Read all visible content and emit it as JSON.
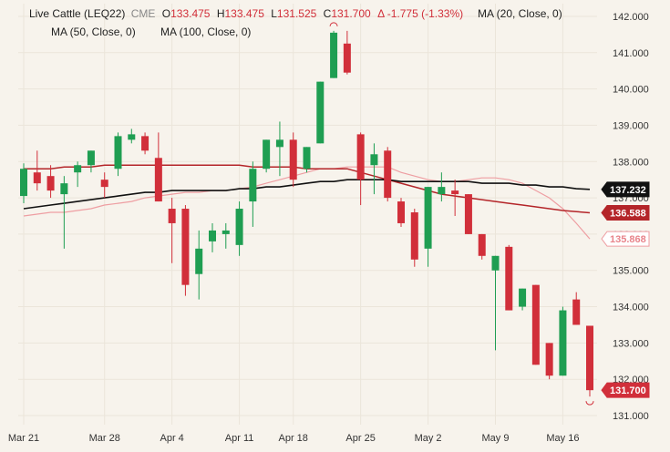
{
  "legend": {
    "symbol": "Live Cattle (LEQ22)",
    "exchange": "CME",
    "o_label": "O",
    "o_value": "133.475",
    "h_label": "H",
    "h_value": "133.475",
    "l_label": "L",
    "l_value": "131.525",
    "c_label": "C",
    "c_value": "131.700",
    "change": "Δ -1.775 (-1.33%)",
    "ma20": "MA (20, Close, 0)",
    "ma50": "MA (50, Close, 0)",
    "ma100": "MA (100, Close, 0)"
  },
  "colors": {
    "background": "#f7f3ec",
    "up": "#1f9e52",
    "down": "#d12f3a",
    "ma20": "#ee9ea2",
    "ma50": "#b42529",
    "ma100": "#111111",
    "grid": "#ebe5da"
  },
  "chart_data": {
    "type": "candlestick",
    "y_axis_side": "right",
    "ylim": [
      130.75,
      142.35
    ],
    "y_ticks": [
      "131.000",
      "132.000",
      "133.000",
      "134.000",
      "135.000",
      "136.000",
      "137.000",
      "138.000",
      "139.000",
      "140.000",
      "141.000",
      "142.000"
    ],
    "x_ticks": [
      {
        "label": "Mar 21",
        "index": 0
      },
      {
        "label": "Mar 28",
        "index": 6
      },
      {
        "label": "Apr 4",
        "index": 11
      },
      {
        "label": "Apr 11",
        "index": 16
      },
      {
        "label": "Apr 18",
        "index": 20
      },
      {
        "label": "Apr 25",
        "index": 25
      },
      {
        "label": "May 2",
        "index": 30
      },
      {
        "label": "May 9",
        "index": 35
      },
      {
        "label": "May 16",
        "index": 40
      }
    ],
    "candles": [
      {
        "o": 137.05,
        "h": 137.95,
        "l": 136.85,
        "c": 137.8
      },
      {
        "o": 137.7,
        "h": 138.3,
        "l": 137.2,
        "c": 137.4
      },
      {
        "o": 137.6,
        "h": 137.9,
        "l": 137.0,
        "c": 137.2
      },
      {
        "o": 137.1,
        "h": 137.6,
        "l": 135.6,
        "c": 137.4
      },
      {
        "o": 137.7,
        "h": 138.0,
        "l": 137.3,
        "c": 137.9
      },
      {
        "o": 137.9,
        "h": 138.3,
        "l": 137.7,
        "c": 138.3
      },
      {
        "o": 137.5,
        "h": 137.7,
        "l": 137.0,
        "c": 137.3
      },
      {
        "o": 137.8,
        "h": 138.8,
        "l": 137.6,
        "c": 138.7
      },
      {
        "o": 138.6,
        "h": 138.9,
        "l": 138.5,
        "c": 138.75
      },
      {
        "o": 138.7,
        "h": 138.8,
        "l": 138.2,
        "c": 138.3
      },
      {
        "o": 138.1,
        "h": 138.8,
        "l": 136.9,
        "c": 136.9
      },
      {
        "o": 136.7,
        "h": 137.0,
        "l": 135.2,
        "c": 136.3
      },
      {
        "o": 136.7,
        "h": 136.8,
        "l": 134.3,
        "c": 134.6
      },
      {
        "o": 134.9,
        "h": 136.1,
        "l": 134.2,
        "c": 135.6
      },
      {
        "o": 135.8,
        "h": 136.3,
        "l": 135.5,
        "c": 136.1
      },
      {
        "o": 136.0,
        "h": 136.3,
        "l": 135.6,
        "c": 136.1
      },
      {
        "o": 135.7,
        "h": 136.9,
        "l": 135.4,
        "c": 136.7
      },
      {
        "o": 136.9,
        "h": 138.0,
        "l": 136.2,
        "c": 137.8
      },
      {
        "o": 137.8,
        "h": 138.6,
        "l": 137.7,
        "c": 138.6
      },
      {
        "o": 138.4,
        "h": 139.1,
        "l": 137.6,
        "c": 138.6
      },
      {
        "o": 138.6,
        "h": 138.8,
        "l": 137.3,
        "c": 137.5
      },
      {
        "o": 137.8,
        "h": 138.4,
        "l": 137.7,
        "c": 138.4
      },
      {
        "o": 138.5,
        "h": 140.2,
        "l": 138.5,
        "c": 140.2
      },
      {
        "o": 140.3,
        "h": 141.6,
        "l": 140.3,
        "c": 141.55
      },
      {
        "o": 141.25,
        "h": 141.6,
        "l": 140.4,
        "c": 140.45
      },
      {
        "o": 138.75,
        "h": 138.8,
        "l": 136.8,
        "c": 137.5
      },
      {
        "o": 137.9,
        "h": 138.5,
        "l": 137.1,
        "c": 138.2
      },
      {
        "o": 138.3,
        "h": 138.4,
        "l": 136.9,
        "c": 137.0
      },
      {
        "o": 136.9,
        "h": 137.0,
        "l": 136.2,
        "c": 136.3
      },
      {
        "o": 136.6,
        "h": 136.7,
        "l": 135.1,
        "c": 135.3
      },
      {
        "o": 135.6,
        "h": 137.3,
        "l": 135.1,
        "c": 137.3
      },
      {
        "o": 137.1,
        "h": 137.7,
        "l": 136.9,
        "c": 137.3
      },
      {
        "o": 137.2,
        "h": 137.5,
        "l": 136.5,
        "c": 137.1
      },
      {
        "o": 137.1,
        "h": 137.1,
        "l": 136.0,
        "c": 136.0
      },
      {
        "o": 136.0,
        "h": 136.0,
        "l": 135.3,
        "c": 135.4
      },
      {
        "o": 135.0,
        "h": 135.4,
        "l": 132.8,
        "c": 135.4
      },
      {
        "o": 135.65,
        "h": 135.7,
        "l": 133.9,
        "c": 133.9
      },
      {
        "o": 134.0,
        "h": 134.5,
        "l": 133.9,
        "c": 134.5
      },
      {
        "o": 134.6,
        "h": 134.6,
        "l": 132.4,
        "c": 132.4
      },
      {
        "o": 133.0,
        "h": 133.0,
        "l": 132.0,
        "c": 132.1
      },
      {
        "o": 132.1,
        "h": 134.0,
        "l": 132.1,
        "c": 133.9
      },
      {
        "o": 134.2,
        "h": 134.4,
        "l": 133.5,
        "c": 133.5
      },
      {
        "o": 133.475,
        "h": 133.475,
        "l": 131.525,
        "c": 131.7
      }
    ],
    "series": [
      {
        "values": [
          136.5,
          136.55,
          136.6,
          136.6,
          136.65,
          136.7,
          136.8,
          136.85,
          136.9,
          137.0,
          137.05,
          137.1,
          137.15,
          137.15,
          137.2,
          137.2,
          137.25,
          137.3,
          137.4,
          137.5,
          137.6,
          137.7,
          137.8,
          137.8,
          137.85,
          137.85,
          137.85,
          137.85,
          137.7,
          137.6,
          137.5,
          137.45,
          137.45,
          137.5,
          137.55,
          137.55,
          137.5,
          137.4,
          137.2,
          137.0,
          136.7,
          136.3,
          135.87
        ]
      },
      {
        "values": [
          137.8,
          137.8,
          137.8,
          137.85,
          137.85,
          137.85,
          137.9,
          137.9,
          137.9,
          137.9,
          137.9,
          137.9,
          137.9,
          137.9,
          137.9,
          137.9,
          137.9,
          137.85,
          137.85,
          137.85,
          137.85,
          137.8,
          137.8,
          137.8,
          137.8,
          137.7,
          137.6,
          137.5,
          137.4,
          137.3,
          137.2,
          137.1,
          137.05,
          137.0,
          136.95,
          136.9,
          136.85,
          136.8,
          136.75,
          136.7,
          136.65,
          136.62,
          136.588
        ]
      },
      {
        "values": [
          136.7,
          136.75,
          136.8,
          136.85,
          136.9,
          136.95,
          137.0,
          137.05,
          137.1,
          137.15,
          137.15,
          137.2,
          137.2,
          137.2,
          137.2,
          137.2,
          137.25,
          137.25,
          137.3,
          137.3,
          137.35,
          137.4,
          137.45,
          137.45,
          137.5,
          137.5,
          137.5,
          137.5,
          137.45,
          137.45,
          137.45,
          137.45,
          137.45,
          137.45,
          137.4,
          137.4,
          137.4,
          137.35,
          137.35,
          137.3,
          137.3,
          137.25,
          137.232
        ]
      }
    ],
    "last_values": [
      {
        "label": "137.232",
        "color": "#111111",
        "text_color": "#ffffff",
        "fill": true
      },
      {
        "label": "136.588",
        "color": "#b42529",
        "text_color": "#ffffff",
        "fill": true
      },
      {
        "label": "135.868",
        "color": "#ee9ea2",
        "text_color": "#e8848b",
        "fill": false
      },
      {
        "label": "131.700",
        "color": "#d12f3a",
        "text_color": "#ffffff",
        "fill": true
      }
    ]
  }
}
